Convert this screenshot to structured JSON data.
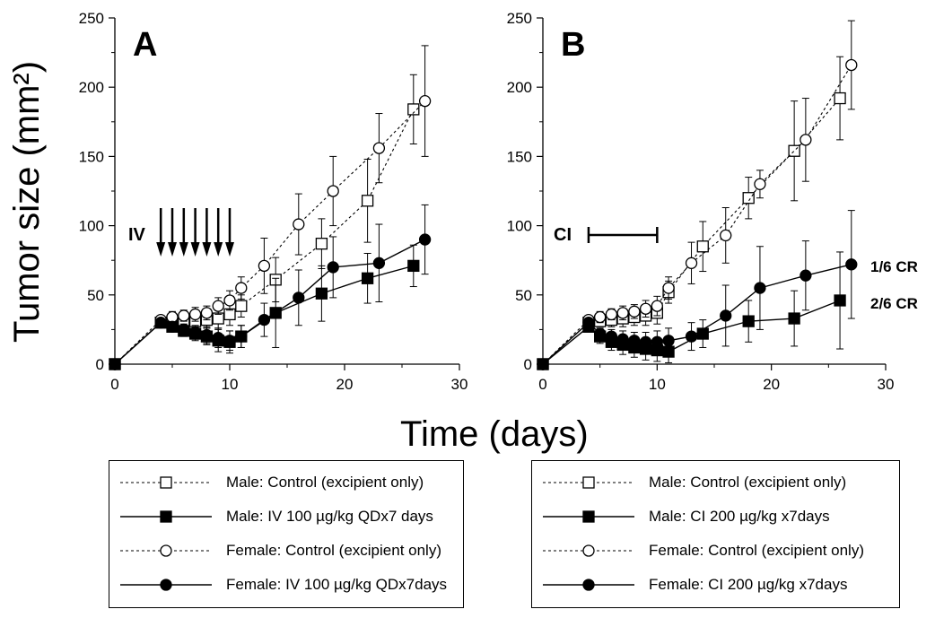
{
  "figure": {
    "ylabel": "Tumor size (mm²)",
    "xlabel": "Time (days)"
  },
  "chart_data": [
    {
      "type": "line",
      "panel_label": "A",
      "xlim": [
        0,
        30
      ],
      "ylim": [
        0,
        250
      ],
      "xticks": [
        "0",
        "10",
        "20",
        "30"
      ],
      "yticks": [
        "0",
        "50",
        "100",
        "150",
        "200",
        "250"
      ],
      "annotation": {
        "text": "IV",
        "dose_days": [
          4,
          5,
          6,
          7,
          8,
          9,
          10
        ]
      },
      "series": [
        {
          "name": "Male: Control (excipient only)",
          "marker": "square-open",
          "dash": true,
          "x": [
            0,
            4,
            5,
            6,
            7,
            8,
            9,
            10,
            11,
            14,
            18,
            22,
            26
          ],
          "y": [
            0,
            30,
            31,
            31,
            31,
            32,
            33,
            36,
            42,
            61,
            87,
            118,
            184
          ],
          "err": [
            0,
            3,
            4,
            5,
            6,
            6,
            7,
            8,
            8,
            16,
            18,
            30,
            25
          ]
        },
        {
          "name": "Male: IV 100 µg/kg QDx7 days",
          "marker": "square-filled",
          "dash": false,
          "x": [
            0,
            4,
            5,
            6,
            7,
            8,
            9,
            10,
            11,
            14,
            18,
            22,
            26
          ],
          "y": [
            0,
            30,
            27,
            24,
            22,
            20,
            17,
            16,
            20,
            37,
            51,
            62,
            71
          ],
          "err": [
            0,
            3,
            3,
            4,
            5,
            6,
            8,
            8,
            8,
            25,
            20,
            18,
            15
          ]
        },
        {
          "name": "Female: Control (excipient only)",
          "marker": "circle-open",
          "dash": true,
          "x": [
            0,
            4,
            5,
            6,
            7,
            8,
            9,
            10,
            11,
            13,
            16,
            19,
            23,
            27
          ],
          "y": [
            0,
            32,
            34,
            35,
            36,
            37,
            42,
            46,
            55,
            71,
            101,
            125,
            156,
            190
          ],
          "err": [
            0,
            3,
            4,
            4,
            5,
            5,
            6,
            7,
            8,
            20,
            22,
            25,
            25,
            40
          ]
        },
        {
          "name": "Female: IV 100 µg/kg QDx7days",
          "marker": "circle-filled",
          "dash": false,
          "x": [
            0,
            4,
            5,
            6,
            7,
            8,
            9,
            10,
            11,
            13,
            16,
            19,
            23,
            27
          ],
          "y": [
            0,
            30,
            27,
            25,
            23,
            21,
            19,
            17,
            20,
            32,
            48,
            70,
            73,
            90
          ],
          "err": [
            0,
            3,
            3,
            4,
            5,
            6,
            7,
            7,
            8,
            12,
            20,
            22,
            28,
            25
          ]
        }
      ]
    },
    {
      "type": "line",
      "panel_label": "B",
      "xlim": [
        0,
        30
      ],
      "ylim": [
        0,
        250
      ],
      "xticks": [
        "0",
        "10",
        "20",
        "30"
      ],
      "yticks": [
        "0",
        "50",
        "100",
        "150",
        "200",
        "250"
      ],
      "annotation": {
        "text": "CI",
        "range_days": [
          4,
          10
        ]
      },
      "end_labels": [
        "1/6 CR",
        "2/6 CR"
      ],
      "series": [
        {
          "name": "Male: Control (excipient only)",
          "marker": "square-open",
          "dash": true,
          "x": [
            0,
            4,
            5,
            6,
            7,
            8,
            9,
            10,
            11,
            14,
            18,
            22,
            26
          ],
          "y": [
            0,
            30,
            31,
            32,
            33,
            34,
            35,
            37,
            52,
            85,
            120,
            154,
            192
          ],
          "err": [
            0,
            3,
            4,
            5,
            6,
            6,
            7,
            8,
            8,
            18,
            15,
            36,
            30
          ]
        },
        {
          "name": "Male: CI 200 µg/kg x7days",
          "marker": "square-filled",
          "dash": false,
          "x": [
            0,
            4,
            5,
            6,
            7,
            8,
            9,
            10,
            11,
            14,
            18,
            22,
            26
          ],
          "y": [
            0,
            27,
            20,
            16,
            14,
            12,
            11,
            10,
            9,
            22,
            31,
            33,
            46
          ],
          "err": [
            0,
            3,
            5,
            6,
            7,
            7,
            8,
            8,
            8,
            10,
            15,
            20,
            35
          ]
        },
        {
          "name": "Female: Control (excipient only)",
          "marker": "circle-open",
          "dash": true,
          "x": [
            0,
            4,
            5,
            6,
            7,
            8,
            9,
            10,
            11,
            13,
            16,
            19,
            23,
            27
          ],
          "y": [
            0,
            32,
            34,
            36,
            37,
            38,
            40,
            42,
            55,
            73,
            93,
            130,
            162,
            216
          ],
          "err": [
            0,
            3,
            4,
            4,
            5,
            5,
            6,
            7,
            8,
            15,
            20,
            10,
            30,
            32
          ]
        },
        {
          "name": "Female: CI 200 µg/kg x7days",
          "marker": "circle-filled",
          "dash": false,
          "x": [
            0,
            4,
            5,
            6,
            7,
            8,
            9,
            10,
            11,
            13,
            16,
            19,
            23,
            27
          ],
          "y": [
            0,
            30,
            22,
            20,
            18,
            17,
            16,
            16,
            17,
            20,
            35,
            55,
            64,
            72
          ],
          "err": [
            0,
            3,
            4,
            5,
            6,
            6,
            7,
            8,
            9,
            10,
            22,
            30,
            25,
            39
          ]
        }
      ]
    }
  ]
}
